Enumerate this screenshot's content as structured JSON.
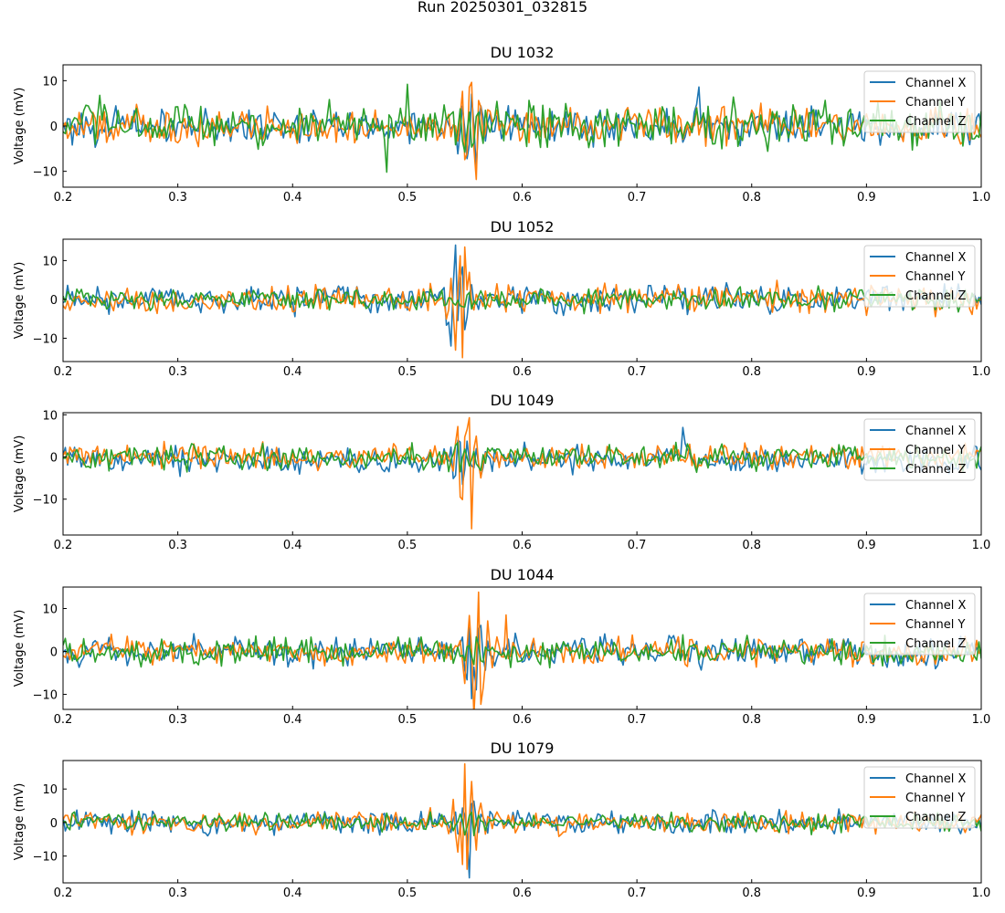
{
  "figure": {
    "suptitle": "Run 20250301_032815"
  },
  "colors": {
    "Channel X": "#1f77b4",
    "Channel Y": "#ff7f0e",
    "Channel Z": "#2ca02c"
  },
  "chart_data": [
    {
      "type": "line",
      "title": "DU 1032",
      "xlabel": "",
      "ylabel": "Voltage (mV)",
      "xlim": [
        0.2,
        1.0
      ],
      "ylim": [
        -13.5,
        13.5
      ],
      "xticks": [
        0.2,
        0.3,
        0.4,
        0.5,
        0.6,
        0.7,
        0.8,
        0.9,
        1.0
      ],
      "xtick_labels": [
        "0.2",
        "0.3",
        "0.4",
        "0.5",
        "0.6",
        "0.7",
        "0.8",
        "0.9",
        "1.0"
      ],
      "yticks": [
        -10,
        0,
        10
      ],
      "ytick_labels": [
        "−10",
        "0",
        "10"
      ],
      "legend": "top-right",
      "n_samples": 401,
      "pulse_center": 0.555,
      "series": [
        {
          "name": "Channel X",
          "noise_amp": 2.3,
          "pulse_amp": 8,
          "seed": 101,
          "spikes": [
            [
              0.755,
              8.6
            ]
          ]
        },
        {
          "name": "Channel Y",
          "noise_amp": 2.4,
          "pulse_amp": 10,
          "seed": 102,
          "spikes": [
            [
              0.56,
              12.4
            ],
            [
              0.56,
              -11.8
            ]
          ]
        },
        {
          "name": "Channel Z",
          "noise_amp": 3.0,
          "pulse_amp": 5,
          "seed": 103,
          "spikes": [
            [
              0.482,
              -10.2
            ],
            [
              0.5,
              9.2
            ]
          ]
        }
      ]
    },
    {
      "type": "line",
      "title": "DU 1052",
      "xlabel": "",
      "ylabel": "Voltage (mV)",
      "xlim": [
        0.2,
        1.0
      ],
      "ylim": [
        -16,
        15.5
      ],
      "xticks": [
        0.2,
        0.3,
        0.4,
        0.5,
        0.6,
        0.7,
        0.8,
        0.9,
        1.0
      ],
      "xtick_labels": [
        "0.2",
        "0.3",
        "0.4",
        "0.5",
        "0.6",
        "0.7",
        "0.8",
        "0.9",
        "1.0"
      ],
      "yticks": [
        -10,
        0,
        10
      ],
      "ytick_labels": [
        "−10",
        "0",
        "10"
      ],
      "legend": "top-right",
      "n_samples": 401,
      "pulse_center": 0.545,
      "series": [
        {
          "name": "Channel X",
          "noise_amp": 2.2,
          "pulse_amp": 9,
          "seed": 201,
          "spikes": [
            [
              0.542,
              14
            ],
            [
              0.538,
              -12
            ]
          ]
        },
        {
          "name": "Channel Y",
          "noise_amp": 2.2,
          "pulse_amp": 10,
          "seed": 202,
          "spikes": [
            [
              0.55,
              13.5
            ],
            [
              0.548,
              -15
            ]
          ]
        },
        {
          "name": "Channel Z",
          "noise_amp": 1.7,
          "pulse_amp": 3,
          "seed": 203,
          "spikes": []
        }
      ]
    },
    {
      "type": "line",
      "title": "DU 1049",
      "xlabel": "",
      "ylabel": "Voltage (mV)",
      "xlim": [
        0.2,
        1.0
      ],
      "ylim": [
        -18.5,
        10.5
      ],
      "xticks": [
        0.2,
        0.3,
        0.4,
        0.5,
        0.6,
        0.7,
        0.8,
        0.9,
        1.0
      ],
      "xtick_labels": [
        "0.2",
        "0.3",
        "0.4",
        "0.5",
        "0.6",
        "0.7",
        "0.8",
        "0.9",
        "1.0"
      ],
      "yticks": [
        -10,
        0,
        10
      ],
      "ytick_labels": [
        "−10",
        "0",
        "10"
      ],
      "legend": "top-right",
      "n_samples": 401,
      "pulse_center": 0.55,
      "series": [
        {
          "name": "Channel X",
          "noise_amp": 1.9,
          "pulse_amp": 5,
          "seed": 301,
          "spikes": [
            [
              0.74,
              7
            ]
          ],
          "offset": -1.5
        },
        {
          "name": "Channel Y",
          "noise_amp": 1.8,
          "pulse_amp": 9,
          "seed": 302,
          "spikes": [
            [
              0.556,
              -17
            ],
            [
              0.553,
              9.3
            ],
            [
              0.545,
              -9.5
            ]
          ]
        },
        {
          "name": "Channel Z",
          "noise_amp": 1.8,
          "pulse_amp": 3,
          "seed": 303,
          "spikes": []
        }
      ]
    },
    {
      "type": "line",
      "title": "DU 1044",
      "xlabel": "",
      "ylabel": "Voltage (mV)",
      "xlim": [
        0.2,
        1.0
      ],
      "ylim": [
        -13.5,
        15
      ],
      "xticks": [
        0.2,
        0.3,
        0.4,
        0.5,
        0.6,
        0.7,
        0.8,
        0.9,
        1.0
      ],
      "xtick_labels": [
        "0.2",
        "0.3",
        "0.4",
        "0.5",
        "0.6",
        "0.7",
        "0.8",
        "0.9",
        "1.0"
      ],
      "yticks": [
        -10,
        0,
        10
      ],
      "ytick_labels": [
        "−10",
        "0",
        "10"
      ],
      "legend": "top-right",
      "n_samples": 401,
      "pulse_center": 0.56,
      "series": [
        {
          "name": "Channel X",
          "noise_amp": 2.1,
          "pulse_amp": 7,
          "seed": 401,
          "spikes": [
            [
              0.555,
              -11
            ]
          ]
        },
        {
          "name": "Channel Y",
          "noise_amp": 2.0,
          "pulse_amp": 11,
          "seed": 402,
          "spikes": [
            [
              0.562,
              13.8
            ],
            [
              0.564,
              -12.3
            ],
            [
              0.586,
              8.5
            ]
          ]
        },
        {
          "name": "Channel Z",
          "noise_amp": 1.9,
          "pulse_amp": 3,
          "seed": 403,
          "spikes": []
        }
      ]
    },
    {
      "type": "line",
      "title": "DU 1079",
      "xlabel": "",
      "ylabel": "Voltage (mV)",
      "xlim": [
        0.2,
        1.0
      ],
      "ylim": [
        -18,
        18.5
      ],
      "xticks": [
        0.2,
        0.3,
        0.4,
        0.5,
        0.6,
        0.7,
        0.8,
        0.9,
        1.0
      ],
      "xtick_labels": [
        "0.2",
        "0.3",
        "0.4",
        "0.5",
        "0.6",
        "0.7",
        "0.8",
        "0.9",
        "1.0"
      ],
      "yticks": [
        -10,
        0,
        10
      ],
      "ytick_labels": [
        "−10",
        "0",
        "10"
      ],
      "legend": "top-right",
      "n_samples": 401,
      "pulse_center": 0.553,
      "series": [
        {
          "name": "Channel X",
          "noise_amp": 2.0,
          "pulse_amp": 7,
          "seed": 501,
          "spikes": [
            [
              0.553,
              -16.5
            ]
          ]
        },
        {
          "name": "Channel Y",
          "noise_amp": 2.0,
          "pulse_amp": 13,
          "seed": 502,
          "spikes": [
            [
              0.55,
              17.5
            ],
            [
              0.548,
              -12.5
            ]
          ]
        },
        {
          "name": "Channel Z",
          "noise_amp": 1.7,
          "pulse_amp": 3,
          "seed": 503,
          "spikes": []
        }
      ]
    }
  ]
}
